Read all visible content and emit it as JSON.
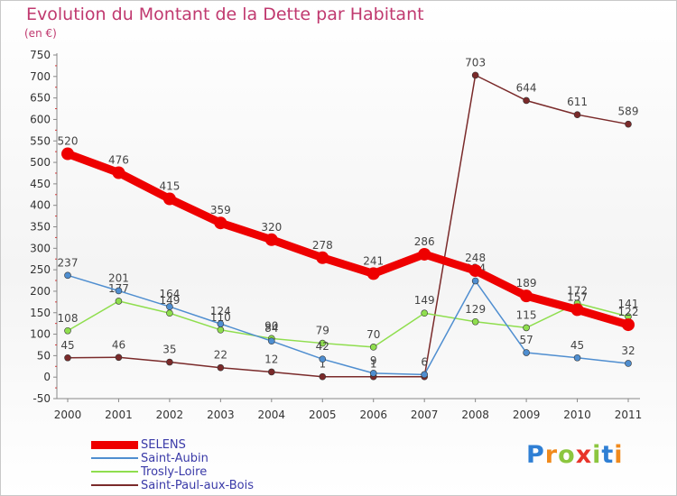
{
  "header": {
    "title": "Evolution du Montant de la Dette par Habitant",
    "unit": "(en €)"
  },
  "chart_data": {
    "type": "line",
    "title": "Evolution du Montant de la Dette par Habitant",
    "subtitle": "(en €)",
    "xlabel": "",
    "ylabel": "",
    "x": [
      "2000",
      "2001",
      "2002",
      "2003",
      "2004",
      "2005",
      "2006",
      "2007",
      "2008",
      "2009",
      "2010",
      "2011"
    ],
    "ylim": [
      -50,
      750
    ],
    "yticks": [
      -50,
      0,
      50,
      100,
      150,
      200,
      250,
      300,
      350,
      400,
      450,
      500,
      550,
      600,
      650,
      700,
      750
    ],
    "grid": false,
    "legend_position": "bottom-left",
    "series": [
      {
        "name": "SELENS",
        "color": "#ee0000",
        "values": [
          520,
          476,
          415,
          359,
          320,
          278,
          241,
          286,
          248,
          189,
          157,
          122
        ],
        "labels": [
          "520",
          "476",
          "415",
          "359",
          "320",
          "278",
          "241",
          "286",
          "248",
          "189",
          "157",
          "122"
        ]
      },
      {
        "name": "Saint-Aubin",
        "color": "#4f8ed0",
        "values": [
          237,
          201,
          164,
          124,
          84,
          42,
          9,
          6,
          224,
          57,
          45,
          32
        ],
        "labels": [
          "237",
          "201",
          "164",
          "124",
          "84",
          "42",
          "9",
          "6",
          "224",
          "57",
          "45",
          "32"
        ]
      },
      {
        "name": "Trosly-Loire",
        "color": "#8fde4e",
        "values": [
          108,
          177,
          149,
          110,
          90,
          79,
          70,
          149,
          129,
          115,
          172,
          141
        ],
        "labels": [
          "108",
          "177",
          "149",
          "110",
          "90",
          "79",
          "70",
          "149",
          "129",
          "115",
          "172",
          "141"
        ]
      },
      {
        "name": "Saint-Paul-aux-Bois",
        "color": "#7a2a2a",
        "values": [
          45,
          46,
          35,
          22,
          12,
          1,
          1,
          1,
          703,
          644,
          611,
          589
        ],
        "labels": [
          "45",
          "46",
          "35",
          "22",
          "12",
          "1",
          "1",
          "",
          "703",
          "644",
          "611",
          "589"
        ]
      }
    ]
  },
  "brand": {
    "letters": [
      "P",
      "r",
      "o",
      "x",
      "i",
      "t",
      "i"
    ],
    "colors": [
      "#2f7fd4",
      "#f08a1c",
      "#8cc63f",
      "#e8342a",
      "#8cc63f",
      "#2f7fd4",
      "#f08a1c"
    ]
  }
}
